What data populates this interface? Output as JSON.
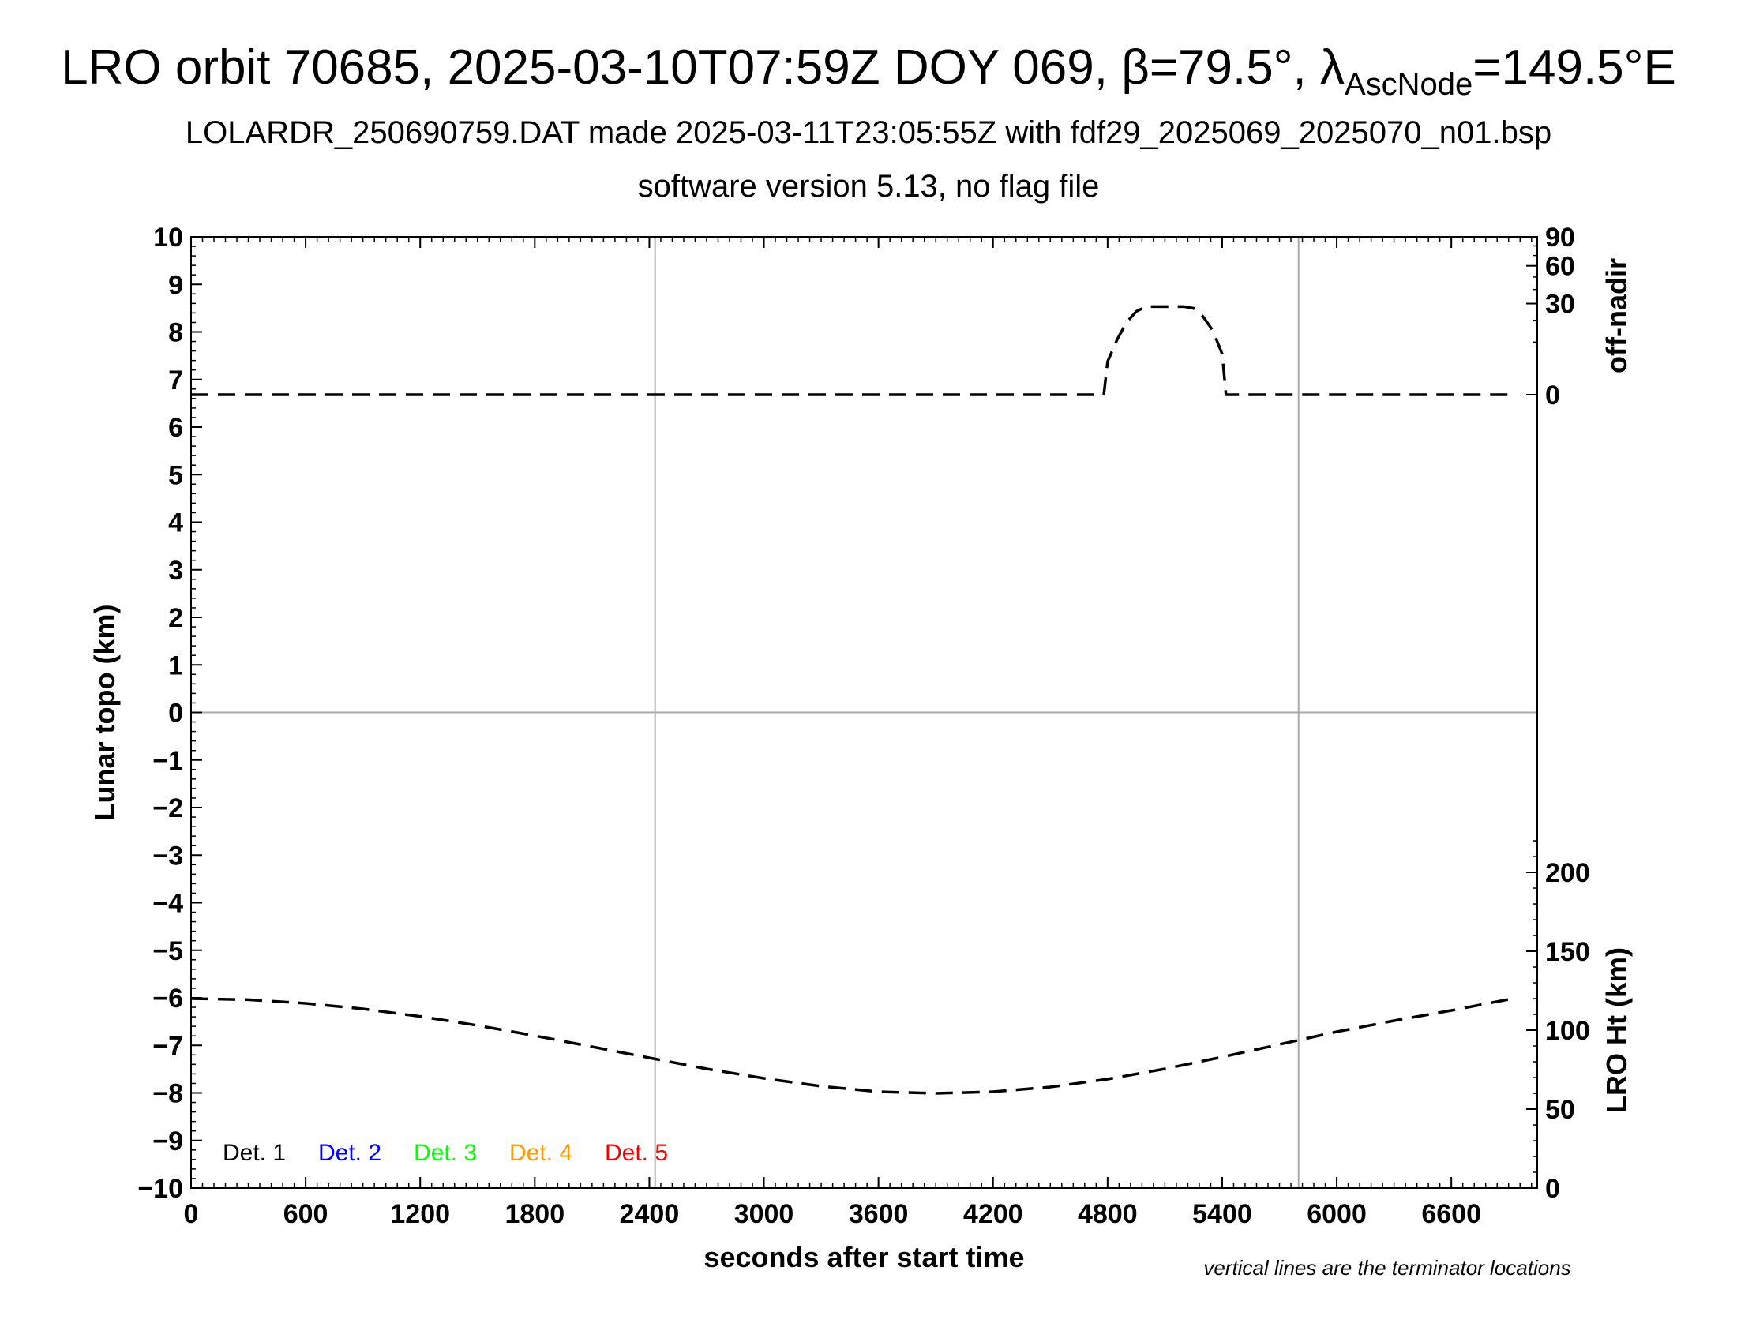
{
  "title": {
    "main": "LRO orbit 70685, 2025-03-10T07:59Z DOY 069, β=79.5°, λ",
    "subscript": "AscNode",
    "suffix": "=149.5°E"
  },
  "subtitle": "LOLARDR_250690759.DAT made 2025-03-11T23:05:55Z with fdf29_2025069_2025070_n01.bsp",
  "subtitle2": "software version 5.13, no flag file",
  "chart_data": {
    "type": "line",
    "xlabel": "seconds after start time",
    "ylabel": "Lunar topo (km)",
    "ylabel_right_upper": "off-nadir",
    "ylabel_right_lower": "LRO Ht (km)",
    "footnote": "vertical lines are the terminator locations",
    "xlim": [
      0,
      7050
    ],
    "ylim": [
      -10,
      10
    ],
    "xticks": [
      0,
      600,
      1200,
      1800,
      2400,
      3000,
      3600,
      4200,
      4800,
      5400,
      6000,
      6600
    ],
    "yticks": [
      10,
      9,
      8,
      7,
      6,
      5,
      4,
      3,
      2,
      1,
      0,
      -1,
      -2,
      -3,
      -4,
      -5,
      -6,
      -7,
      -8,
      -9,
      -10
    ],
    "yticks_right_upper": [
      90,
      60,
      30,
      0
    ],
    "yticks_right_lower": [
      200,
      150,
      100,
      50,
      0
    ],
    "grid_vertical_x": [
      2430,
      5800
    ],
    "grid_horizontal_y": [
      0
    ],
    "legend": {
      "placement": "bottom-left",
      "entries": [
        {
          "label": "Det. 1",
          "color": "#000000"
        },
        {
          "label": "Det. 2",
          "color": "#0000ff"
        },
        {
          "label": "Det. 3",
          "color": "#00ff00"
        },
        {
          "label": "Det. 4",
          "color": "#ff9900"
        },
        {
          "label": "Det. 5",
          "color": "#ff0000"
        }
      ]
    },
    "series": [
      {
        "name": "off-nadir",
        "style": "dashed",
        "color": "#000000",
        "axis": "right-upper",
        "unit": "deg",
        "x": [
          0,
          1000,
          2000,
          3000,
          4000,
          4780,
          4800,
          4850,
          4900,
          4950,
          5000,
          5050,
          5100,
          5150,
          5200,
          5250,
          5300,
          5350,
          5400,
          5420,
          5500,
          6000,
          6500,
          6900
        ],
        "y": [
          0,
          0,
          0,
          0,
          0,
          0,
          4,
          11,
          19,
          25,
          28,
          28,
          28,
          28,
          28,
          27,
          22,
          15,
          6,
          0,
          0,
          0,
          0,
          0
        ]
      },
      {
        "name": "LRO Ht",
        "style": "dashed",
        "color": "#000000",
        "axis": "right-lower",
        "unit": "km",
        "x": [
          0,
          300,
          600,
          900,
          1200,
          1500,
          1800,
          2100,
          2400,
          2700,
          3000,
          3300,
          3600,
          3900,
          4200,
          4500,
          4800,
          5100,
          5400,
          5700,
          6000,
          6300,
          6600,
          6900
        ],
        "y": [
          120,
          119.3,
          117,
          113.5,
          108.7,
          103,
          96.5,
          89.5,
          82.5,
          75.5,
          69.5,
          64.5,
          61,
          60,
          61,
          64,
          69,
          75.5,
          83,
          91,
          99,
          106,
          112.5,
          119.5
        ]
      }
    ]
  }
}
